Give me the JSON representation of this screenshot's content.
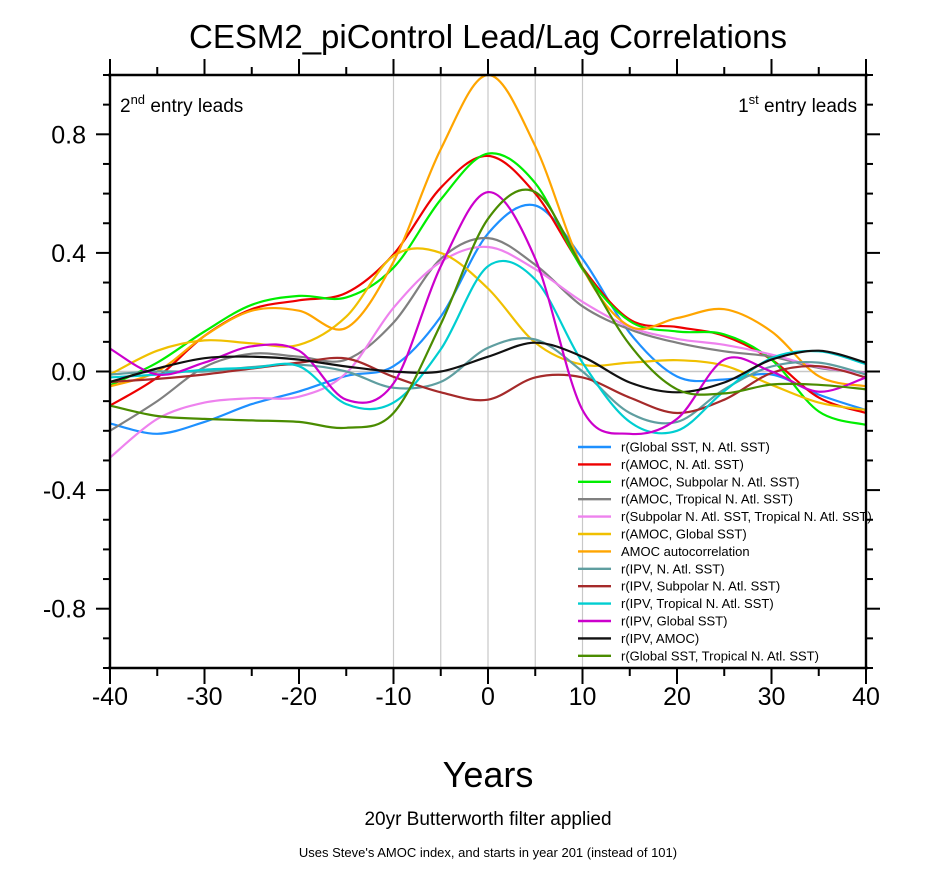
{
  "chart_data": {
    "type": "line",
    "title": "CESM2_piControl Lead/Lag Correlations",
    "xlabel": "Years",
    "ylabel": "",
    "subtitle": "20yr Butterworth filter applied",
    "note": "Uses Steve's AMOC index, and starts in year 201 (instead of 101)",
    "left_annotation": {
      "prefix": "2",
      "sup": "nd",
      "text": " entry leads"
    },
    "right_annotation": {
      "prefix": "1",
      "sup": "st",
      "text": " entry leads"
    },
    "xlim": [
      -40,
      40
    ],
    "ylim": [
      -1.0,
      1.0
    ],
    "xticks": [
      -40,
      -30,
      -20,
      -10,
      0,
      10,
      20,
      30,
      40
    ],
    "xtick_labels": [
      "-40",
      "-30",
      "-20",
      "-10",
      "0",
      "10",
      "20",
      "30",
      "40"
    ],
    "yticks": [
      0.8,
      0.4,
      0.0,
      -0.4,
      -0.8
    ],
    "ytick_labels": [
      "0.8",
      "0.4",
      "0.0",
      "-0.4",
      "-0.8"
    ],
    "vertical_gridlines": [
      -10,
      -5,
      0,
      5,
      10
    ],
    "zero_line": true,
    "legend_position": "bottom-right",
    "x": [
      -40,
      -35,
      -30,
      -25,
      -20,
      -15,
      -10,
      -5,
      0,
      5,
      10,
      15,
      20,
      25,
      30,
      35,
      40
    ],
    "series": [
      {
        "name": "r(Global SST, N. Atl. SST)",
        "color": "#1e90ff",
        "values": [
          -0.175,
          -0.21,
          -0.17,
          -0.11,
          -0.067,
          -0.015,
          0.018,
          0.185,
          0.465,
          0.56,
          0.38,
          0.13,
          -0.017,
          -0.027,
          -0.01,
          -0.078,
          -0.13
        ]
      },
      {
        "name": "r(AMOC, N. Atl. SST)",
        "color": "#ee0000",
        "values": [
          -0.115,
          -0.02,
          0.12,
          0.21,
          0.24,
          0.265,
          0.395,
          0.62,
          0.727,
          0.6,
          0.35,
          0.175,
          0.15,
          0.12,
          0.04,
          -0.088,
          -0.14
        ]
      },
      {
        "name": "r(AMOC, Subpolar N. Atl. SST)",
        "color": "#00ee00",
        "values": [
          -0.047,
          0.03,
          0.135,
          0.225,
          0.255,
          0.25,
          0.35,
          0.58,
          0.735,
          0.635,
          0.345,
          0.17,
          0.135,
          0.125,
          0.04,
          -0.135,
          -0.18
        ]
      },
      {
        "name": "r(AMOC, Tropical N. Atl. SST)",
        "color": "#808080",
        "values": [
          -0.2,
          -0.1,
          0.015,
          0.06,
          0.05,
          0.04,
          0.165,
          0.38,
          0.45,
          0.36,
          0.22,
          0.142,
          0.097,
          0.068,
          0.05,
          0.012,
          -0.003
        ]
      },
      {
        "name": "r(Subpolar N. Atl. SST, Tropical N. Atl. SST)",
        "color": "#ee82ee",
        "values": [
          -0.29,
          -0.16,
          -0.105,
          -0.09,
          -0.085,
          -0.005,
          0.215,
          0.37,
          0.42,
          0.345,
          0.235,
          0.15,
          0.11,
          0.09,
          0.057,
          0.015,
          -0.005
        ]
      },
      {
        "name": "r(AMOC, Global SST)",
        "color": "#f0c000",
        "values": [
          -0.01,
          0.07,
          0.105,
          0.095,
          0.09,
          0.185,
          0.39,
          0.4,
          0.28,
          0.097,
          0.023,
          0.03,
          0.038,
          0.02,
          -0.045,
          -0.105,
          -0.13
        ]
      },
      {
        "name": "AMOC autocorrelation",
        "color": "#ffa500",
        "values": [
          -0.05,
          0.0,
          0.12,
          0.205,
          0.205,
          0.147,
          0.37,
          0.75,
          1.0,
          0.76,
          0.35,
          0.152,
          0.18,
          0.21,
          0.135,
          -0.016,
          -0.05
        ]
      },
      {
        "name": "r(IPV, N. Atl. SST)",
        "color": "#5f9ea0",
        "values": [
          -0.01,
          0.0,
          0.0,
          0.015,
          0.023,
          0.0,
          -0.055,
          -0.035,
          0.08,
          0.108,
          0.0,
          -0.14,
          -0.17,
          -0.06,
          0.017,
          0.03,
          -0.01
        ]
      },
      {
        "name": "r(IPV, Subpolar N. Atl. SST)",
        "color": "#a52a2a",
        "values": [
          -0.035,
          -0.025,
          -0.01,
          0.01,
          0.03,
          0.044,
          -0.018,
          -0.07,
          -0.095,
          -0.02,
          -0.02,
          -0.088,
          -0.14,
          -0.095,
          -0.005,
          0.018,
          -0.02
        ]
      },
      {
        "name": "r(IPV, Tropical N. Atl. SST)",
        "color": "#00ced1",
        "values": [
          -0.02,
          -0.01,
          0.006,
          0.012,
          0.018,
          -0.11,
          -0.105,
          0.075,
          0.355,
          0.31,
          0.03,
          -0.17,
          -0.2,
          -0.066,
          0.045,
          0.068,
          0.025
        ]
      },
      {
        "name": "r(IPV, Global SST)",
        "color": "#cc00cc",
        "values": [
          0.077,
          -0.01,
          0.03,
          0.085,
          0.07,
          -0.095,
          -0.04,
          0.355,
          0.605,
          0.38,
          -0.13,
          -0.21,
          -0.16,
          0.04,
          0.0,
          -0.068,
          -0.02
        ]
      },
      {
        "name": "r(IPV, AMOC)",
        "color": "#111111",
        "values": [
          -0.035,
          0.01,
          0.045,
          0.05,
          0.04,
          0.017,
          0.0,
          0.0,
          0.05,
          0.097,
          0.05,
          -0.037,
          -0.07,
          -0.037,
          0.04,
          0.07,
          0.03
        ]
      },
      {
        "name": "r(Global SST, Tropical N. Atl. SST)",
        "color": "#4a8c00",
        "values": [
          -0.115,
          -0.15,
          -0.16,
          -0.165,
          -0.17,
          -0.19,
          -0.14,
          0.16,
          0.515,
          0.605,
          0.35,
          0.09,
          -0.06,
          -0.074,
          -0.044,
          -0.045,
          -0.06
        ]
      }
    ]
  }
}
